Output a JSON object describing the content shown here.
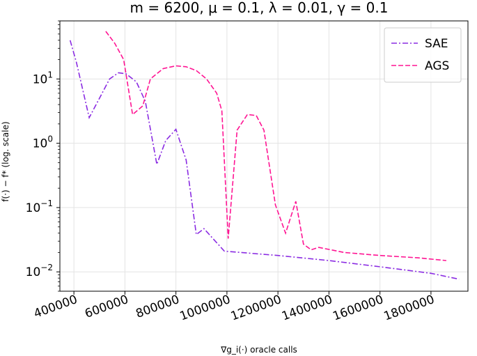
{
  "chart_data": {
    "type": "line",
    "title": "m = 6200, μ = 0.1, λ = 0.01, γ = 0.1",
    "xlabel": "∇g_i(·) oracle calls",
    "ylabel": "f(·) − f* (log. scale)",
    "yscale": "log",
    "xlim": [
      345000,
      1945000
    ],
    "ylim": [
      0.005,
      80
    ],
    "grid": true,
    "legend_position": "top-right",
    "xticks": [
      {
        "value": 400000,
        "label": "400000"
      },
      {
        "value": 600000,
        "label": "600000"
      },
      {
        "value": 800000,
        "label": "800000"
      },
      {
        "value": 1000000,
        "label": "1000000"
      },
      {
        "value": 1200000,
        "label": "1200000"
      },
      {
        "value": 1400000,
        "label": "1400000"
      },
      {
        "value": 1600000,
        "label": "1600000"
      },
      {
        "value": 1800000,
        "label": "1800000"
      }
    ],
    "yticks": [
      {
        "value": 0.01,
        "base": "10",
        "exp": "−2"
      },
      {
        "value": 0.1,
        "base": "10",
        "exp": "−1"
      },
      {
        "value": 1,
        "base": "10",
        "exp": "0"
      },
      {
        "value": 10,
        "base": "10",
        "exp": "1"
      }
    ],
    "series": [
      {
        "name": "SAE",
        "color": "#8a2be2",
        "dash": "dashdot",
        "points": [
          [
            385000,
            40
          ],
          [
            410000,
            18
          ],
          [
            460000,
            2.5
          ],
          [
            500000,
            5
          ],
          [
            540000,
            10
          ],
          [
            575000,
            12.5
          ],
          [
            605000,
            12
          ],
          [
            645000,
            9
          ],
          [
            680000,
            4.5
          ],
          [
            725000,
            0.47
          ],
          [
            760000,
            1.1
          ],
          [
            800000,
            1.65
          ],
          [
            840000,
            0.55
          ],
          [
            880000,
            0.038
          ],
          [
            910000,
            0.047
          ],
          [
            990000,
            0.021
          ],
          [
            1200000,
            0.018
          ],
          [
            1400000,
            0.015
          ],
          [
            1600000,
            0.012
          ],
          [
            1800000,
            0.0095
          ],
          [
            1910000,
            0.0077
          ]
        ]
      },
      {
        "name": "AGS",
        "color": "#ff1493",
        "dash": "dashed",
        "points": [
          [
            525000,
            55
          ],
          [
            560000,
            36
          ],
          [
            595000,
            20
          ],
          [
            630000,
            2.8
          ],
          [
            670000,
            3.8
          ],
          [
            700000,
            10
          ],
          [
            750000,
            14.5
          ],
          [
            800000,
            16
          ],
          [
            840000,
            15.5
          ],
          [
            880000,
            13.5
          ],
          [
            920000,
            10
          ],
          [
            960000,
            6
          ],
          [
            980000,
            3.2
          ],
          [
            1005000,
            0.033
          ],
          [
            1040000,
            1.6
          ],
          [
            1080000,
            2.8
          ],
          [
            1115000,
            2.7
          ],
          [
            1145000,
            1.6
          ],
          [
            1190000,
            0.11
          ],
          [
            1230000,
            0.04
          ],
          [
            1270000,
            0.125
          ],
          [
            1300000,
            0.027
          ],
          [
            1330000,
            0.022
          ],
          [
            1360000,
            0.024
          ],
          [
            1460000,
            0.02
          ],
          [
            1600000,
            0.018
          ],
          [
            1750000,
            0.0165
          ],
          [
            1860000,
            0.015
          ]
        ]
      }
    ]
  }
}
